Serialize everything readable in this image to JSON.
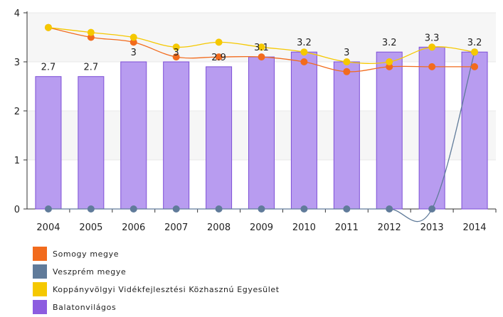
{
  "chart_data": {
    "type": "bar",
    "categories": [
      "2004",
      "2005",
      "2006",
      "2007",
      "2008",
      "2009",
      "2010",
      "2011",
      "2012",
      "2013",
      "2014"
    ],
    "ylim": [
      0,
      4
    ],
    "yticks": [
      "0",
      "1",
      "2",
      "3",
      "4"
    ],
    "grid": true,
    "legend_position": "bottom-left",
    "series": [
      {
        "name": "Somogy megye",
        "type": "line",
        "color": "#f26b1d",
        "values": [
          3.7,
          3.5,
          3.4,
          3.1,
          3.1,
          3.1,
          3.0,
          2.8,
          2.9,
          2.9,
          2.9
        ]
      },
      {
        "name": "Veszprém megye",
        "type": "line",
        "color": "#607b9a",
        "values": [
          0,
          0,
          0,
          0,
          0,
          0,
          0,
          0,
          0,
          0,
          3.2
        ]
      },
      {
        "name": "Koppányvölgyi Vidékfejlesztési Közhasznú Egyesület",
        "type": "line",
        "color": "#f5c800",
        "values": [
          3.7,
          3.6,
          3.5,
          3.3,
          3.4,
          3.3,
          3.2,
          3.0,
          3.0,
          3.3,
          3.2
        ]
      },
      {
        "name": "Balatonvilágos",
        "type": "bar",
        "color": "#8d5de0",
        "values": [
          2.7,
          2.7,
          3.0,
          3.0,
          2.9,
          3.1,
          3.2,
          3.0,
          3.2,
          3.3,
          3.2
        ],
        "labels": [
          "2.7",
          "2.7",
          "3",
          "3",
          "2.9",
          "3.1",
          "3.2",
          "3",
          "3.2",
          "3.3",
          "3.2"
        ]
      }
    ]
  }
}
